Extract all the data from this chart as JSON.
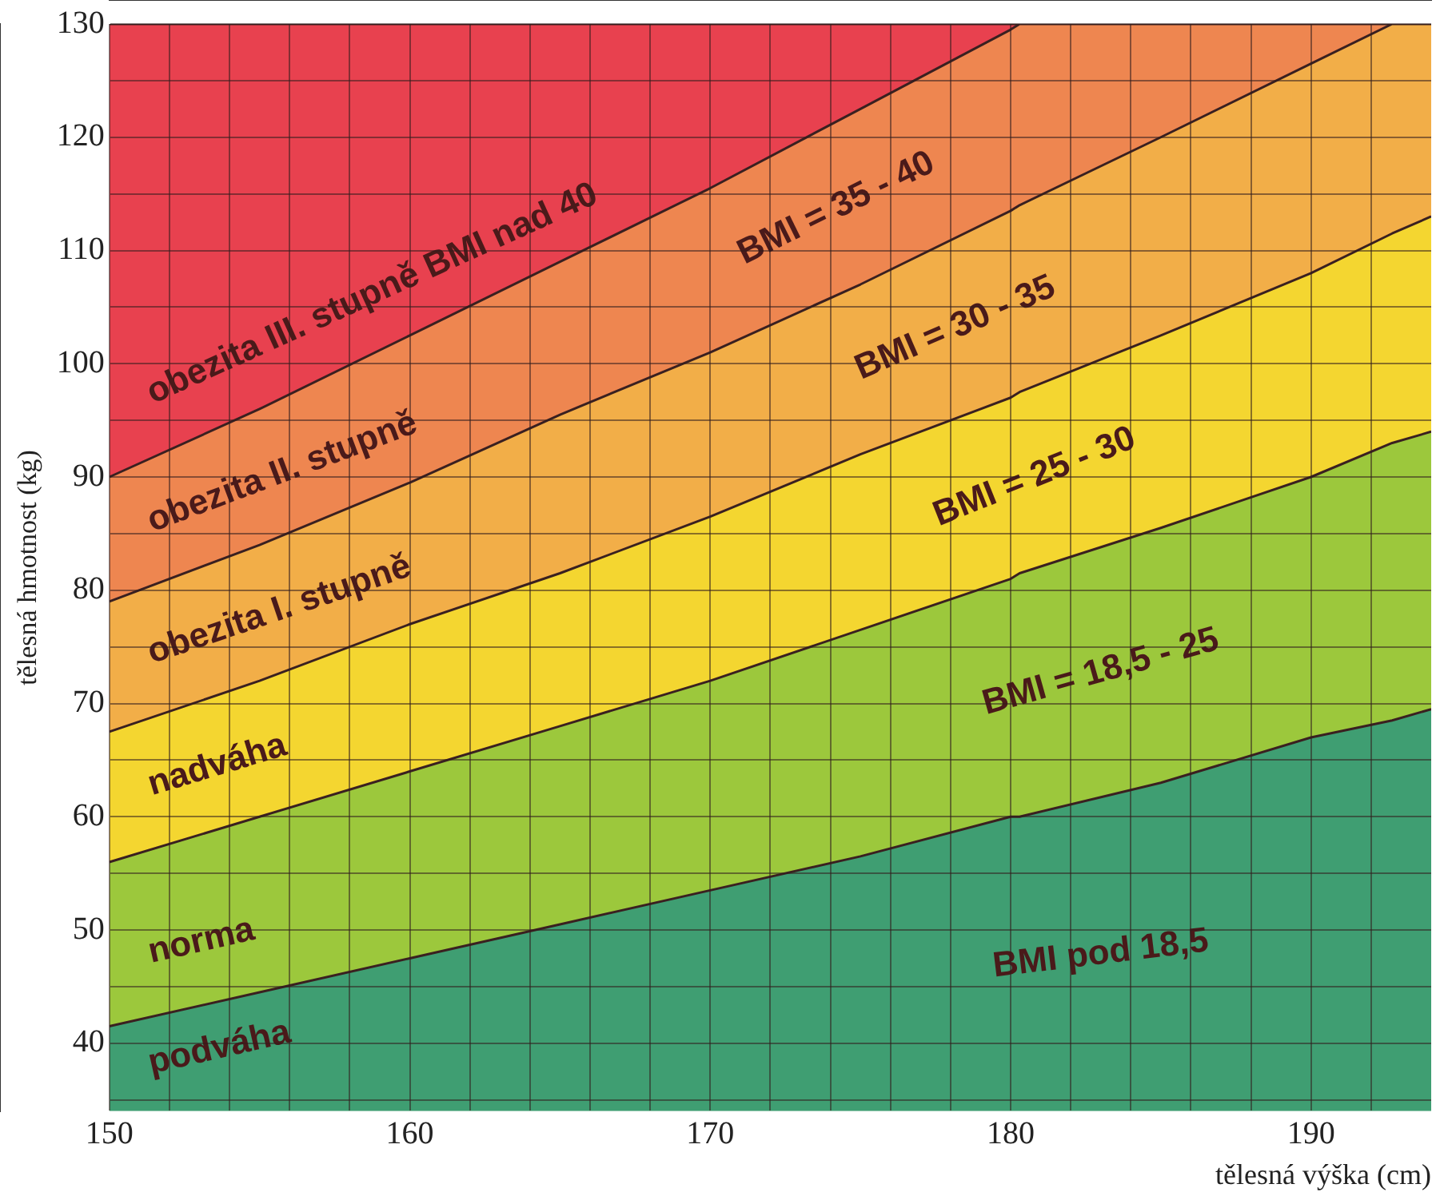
{
  "chart_data": {
    "type": "area",
    "xlabel": "tělesná výška (cm)",
    "ylabel": "tělesná hmotnost (kg)",
    "x": [
      150,
      155,
      160,
      165,
      170,
      175,
      180,
      180.3,
      185,
      190,
      192.7,
      194
    ],
    "series": [
      {
        "name": "podváha",
        "color": "#3f9e72",
        "values": [
          41.5,
          44.5,
          47.5,
          50.5,
          53.5,
          56.5,
          60,
          60,
          63,
          67,
          68.5,
          69.5
        ]
      },
      {
        "name": "norma",
        "color": "#9cc83c",
        "values": [
          56,
          60,
          64,
          68,
          72,
          76.5,
          81,
          81.5,
          85.5,
          90,
          93,
          94
        ]
      },
      {
        "name": "nadváha",
        "color": "#f4d630",
        "values": [
          67.5,
          72,
          77,
          81.5,
          86.5,
          92,
          97,
          97.5,
          102.5,
          108,
          111.5,
          113
        ]
      },
      {
        "name": "obezita I. stupně",
        "color": "#f2ae48",
        "values": [
          79,
          84,
          89.5,
          95.5,
          101,
          107,
          113.5,
          114,
          120,
          126.5,
          130,
          130
        ]
      },
      {
        "name": "obezita II. stupně",
        "color": "#ee8650",
        "values": [
          90,
          96,
          102.5,
          109,
          115.5,
          122.5,
          129.5,
          130,
          130,
          130,
          130,
          130
        ]
      },
      {
        "name": "obezita III. stupně BMI nad 40",
        "color": "#e8414f",
        "values": [
          130,
          130,
          130,
          130,
          130,
          130,
          130,
          130,
          130,
          130,
          130,
          130
        ]
      }
    ],
    "xlim": [
      150,
      194
    ],
    "xticks": [
      150,
      {
        "value": 152,
        "label": null
      },
      {
        "value": 154,
        "label": null
      },
      {
        "value": 156,
        "label": null
      },
      {
        "value": 158,
        "label": null
      },
      160,
      {
        "value": 162,
        "label": null
      },
      {
        "value": 164,
        "label": null
      },
      {
        "value": 166,
        "label": null
      },
      {
        "value": 168,
        "label": null
      },
      170,
      {
        "value": 172,
        "label": null
      },
      {
        "value": 174,
        "label": null
      },
      {
        "value": 176,
        "label": null
      },
      {
        "value": 178,
        "label": null
      },
      180,
      {
        "value": 182,
        "label": null
      },
      {
        "value": 184,
        "label": null
      },
      {
        "value": 186,
        "label": null
      },
      {
        "value": 188,
        "label": null
      },
      190,
      {
        "value": 192,
        "label": null
      }
    ],
    "ylim": [
      34,
      130
    ],
    "yticks": [
      {
        "value": 35,
        "label": null
      },
      40,
      {
        "value": 45,
        "label": null
      },
      50,
      {
        "value": 55,
        "label": null
      },
      60,
      {
        "value": 65,
        "label": null
      },
      70,
      {
        "value": 75,
        "label": null
      },
      80,
      {
        "value": 85,
        "label": null
      },
      90,
      {
        "value": 95,
        "label": null
      },
      100,
      {
        "value": 105,
        "label": null
      },
      110,
      {
        "value": 115,
        "label": null
      },
      120,
      {
        "value": 125,
        "label": null
      },
      130
    ],
    "grid": true,
    "legend": false,
    "marker": "none",
    "annotations": [
      "BMI pod 18,5",
      "BMI = 18,5 - 25",
      "BMI = 25 - 30",
      "BMI = 30 - 35",
      "BMI = 35 - 40"
    ]
  }
}
